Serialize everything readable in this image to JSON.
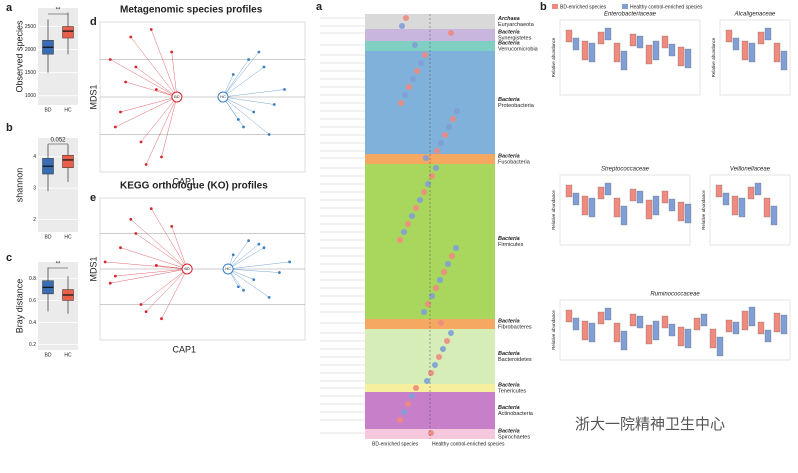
{
  "chart_data": [
    {
      "type": "box",
      "panel": "a",
      "ylabel": "Observed species",
      "categories": [
        "BD",
        "HC"
      ],
      "annotation": "**",
      "ylim": [
        800,
        2900
      ],
      "yticks": [
        1000,
        1500,
        2000,
        2500
      ],
      "boxes": [
        {
          "color": "#3a6cb4",
          "min": 1500,
          "q1": 1900,
          "median": 2050,
          "q3": 2200,
          "max": 2650
        },
        {
          "color": "#e8604c",
          "min": 1900,
          "q1": 2250,
          "median": 2400,
          "q3": 2500,
          "max": 2800
        }
      ]
    },
    {
      "type": "box",
      "panel": "b",
      "ylabel": "shannon",
      "categories": [
        "BD",
        "HC"
      ],
      "annotation": "0.052",
      "ylim": [
        1.6,
        4.6
      ],
      "yticks": [
        2,
        3,
        4
      ],
      "boxes": [
        {
          "color": "#3a6cb4",
          "min": 2.9,
          "q1": 3.45,
          "median": 3.7,
          "q3": 3.95,
          "max": 4.4
        },
        {
          "color": "#e8604c",
          "min": 3.2,
          "q1": 3.65,
          "median": 3.9,
          "q3": 4.05,
          "max": 4.4
        }
      ]
    },
    {
      "type": "box",
      "panel": "c",
      "ylabel": "Bray distance",
      "categories": [
        "BD",
        "HC"
      ],
      "annotation": "**",
      "ylim": [
        0.15,
        0.95
      ],
      "yticks": [
        0.2,
        0.4,
        0.6,
        0.8
      ],
      "boxes": [
        {
          "color": "#3a6cb4",
          "min": 0.5,
          "q1": 0.66,
          "median": 0.72,
          "q3": 0.78,
          "max": 0.9
        },
        {
          "color": "#e8604c",
          "min": 0.48,
          "q1": 0.6,
          "median": 0.65,
          "q3": 0.7,
          "max": 0.82
        }
      ]
    },
    {
      "type": "scatter",
      "panel": "d",
      "title": "Metagenomic species profiles",
      "xlabel": "CAP1",
      "ylabel": "MDS1",
      "xlim": [
        -1,
        1
      ],
      "ylim": [
        -1,
        1
      ],
      "series": [
        {
          "name": "BD",
          "color": "#d7262c",
          "centroid": [
            -0.25,
            0
          ],
          "x": [
            -0.9,
            -0.8,
            -0.7,
            -0.6,
            -0.75,
            -0.5,
            -0.85,
            -0.4,
            -0.65,
            -0.3,
            -0.55,
            -0.45
          ],
          "y": [
            0.5,
            -0.2,
            0.8,
            -0.6,
            0.2,
            0.9,
            -0.4,
            -0.8,
            0.4,
            0.6,
            -0.9,
            0.1
          ]
        },
        {
          "name": "HC",
          "color": "#3b7fc4",
          "centroid": [
            0.2,
            0
          ],
          "x": [
            0.3,
            0.5,
            0.6,
            0.7,
            0.4,
            0.8,
            0.55,
            0.35,
            0.65,
            0.45
          ],
          "y": [
            0.3,
            -0.2,
            0.4,
            -0.1,
            -0.4,
            0.1,
            0.6,
            -0.3,
            -0.5,
            0.5
          ]
        }
      ]
    },
    {
      "type": "scatter",
      "panel": "e",
      "title": "KEGG orthologue (KO) profiles",
      "xlabel": "CAP1",
      "ylabel": "MDS1",
      "xlim": [
        -1,
        1
      ],
      "ylim": [
        -1,
        1
      ],
      "series": [
        {
          "name": "BD",
          "color": "#d7262c",
          "centroid": [
            -0.15,
            0
          ],
          "x": [
            -0.95,
            -0.85,
            -0.7,
            -0.6,
            -0.8,
            -0.5,
            -0.9,
            -0.4,
            -0.65,
            -0.3,
            -0.55,
            -0.45
          ],
          "y": [
            0.1,
            -0.1,
            0.7,
            -0.5,
            0.3,
            0.85,
            -0.2,
            -0.7,
            0.5,
            0.6,
            -0.6,
            0.05
          ]
        },
        {
          "name": "HC",
          "color": "#3b7fc4",
          "centroid": [
            0.25,
            0
          ],
          "x": [
            0.3,
            0.5,
            0.6,
            0.75,
            0.4,
            0.85,
            0.55,
            0.35,
            0.65,
            0.45
          ],
          "y": [
            0.2,
            -0.15,
            0.3,
            -0.05,
            -0.3,
            0.1,
            0.35,
            -0.25,
            -0.4,
            0.4
          ]
        }
      ]
    }
  ],
  "taxa_panel": {
    "label": "a",
    "phyla": [
      {
        "name": "Archaea",
        "phylum": "Euryarchaeota",
        "color": "#d9d9d9"
      },
      {
        "name": "Bacteria",
        "phylum": "Synergistetes",
        "color": "#c8b6de"
      },
      {
        "name": "Bacteria",
        "phylum": "Verrucomicrobia",
        "color": "#7fd0c2"
      },
      {
        "name": "Bacteria",
        "phylum": "Proteobacteria",
        "color": "#7fb1da"
      },
      {
        "name": "Bacteria",
        "phylum": "Fusobacteria",
        "color": "#f5a862"
      },
      {
        "name": "Bacteria",
        "phylum": "Firmicutes",
        "color": "#a9d65c"
      },
      {
        "name": "Bacteria",
        "phylum": "Fibrobacteres",
        "color": "#f5a862"
      },
      {
        "name": "Bacteria",
        "phylum": "Bacteroidetes",
        "color": "#d6edb8"
      },
      {
        "name": "Bacteria",
        "phylum": "Tenericutes",
        "color": "#f6f09e"
      },
      {
        "name": "Bacteria",
        "phylum": "Actinobacteria",
        "color": "#c67fc8"
      },
      {
        "name": "Bacteria",
        "phylum": "Spirochaetes",
        "color": "#f5c8de"
      }
    ],
    "legend": [
      "BD-enriched species",
      "Healthy control-enriched species"
    ]
  },
  "abundance_panel": {
    "label": "b",
    "ylabel": "Relative abundance",
    "legend": [
      {
        "name": "BD-enriched species",
        "color": "#f08a7e"
      },
      {
        "name": "Healthy control-enriched species",
        "color": "#7f9fd6"
      }
    ],
    "families": [
      "Enterobacteriaceae",
      "Alcaligenaceae",
      "Streptococcaceae",
      "Veillonellaceae",
      "Ruminococcaceae"
    ]
  },
  "watermark": "浙大一院精神卫生中心"
}
